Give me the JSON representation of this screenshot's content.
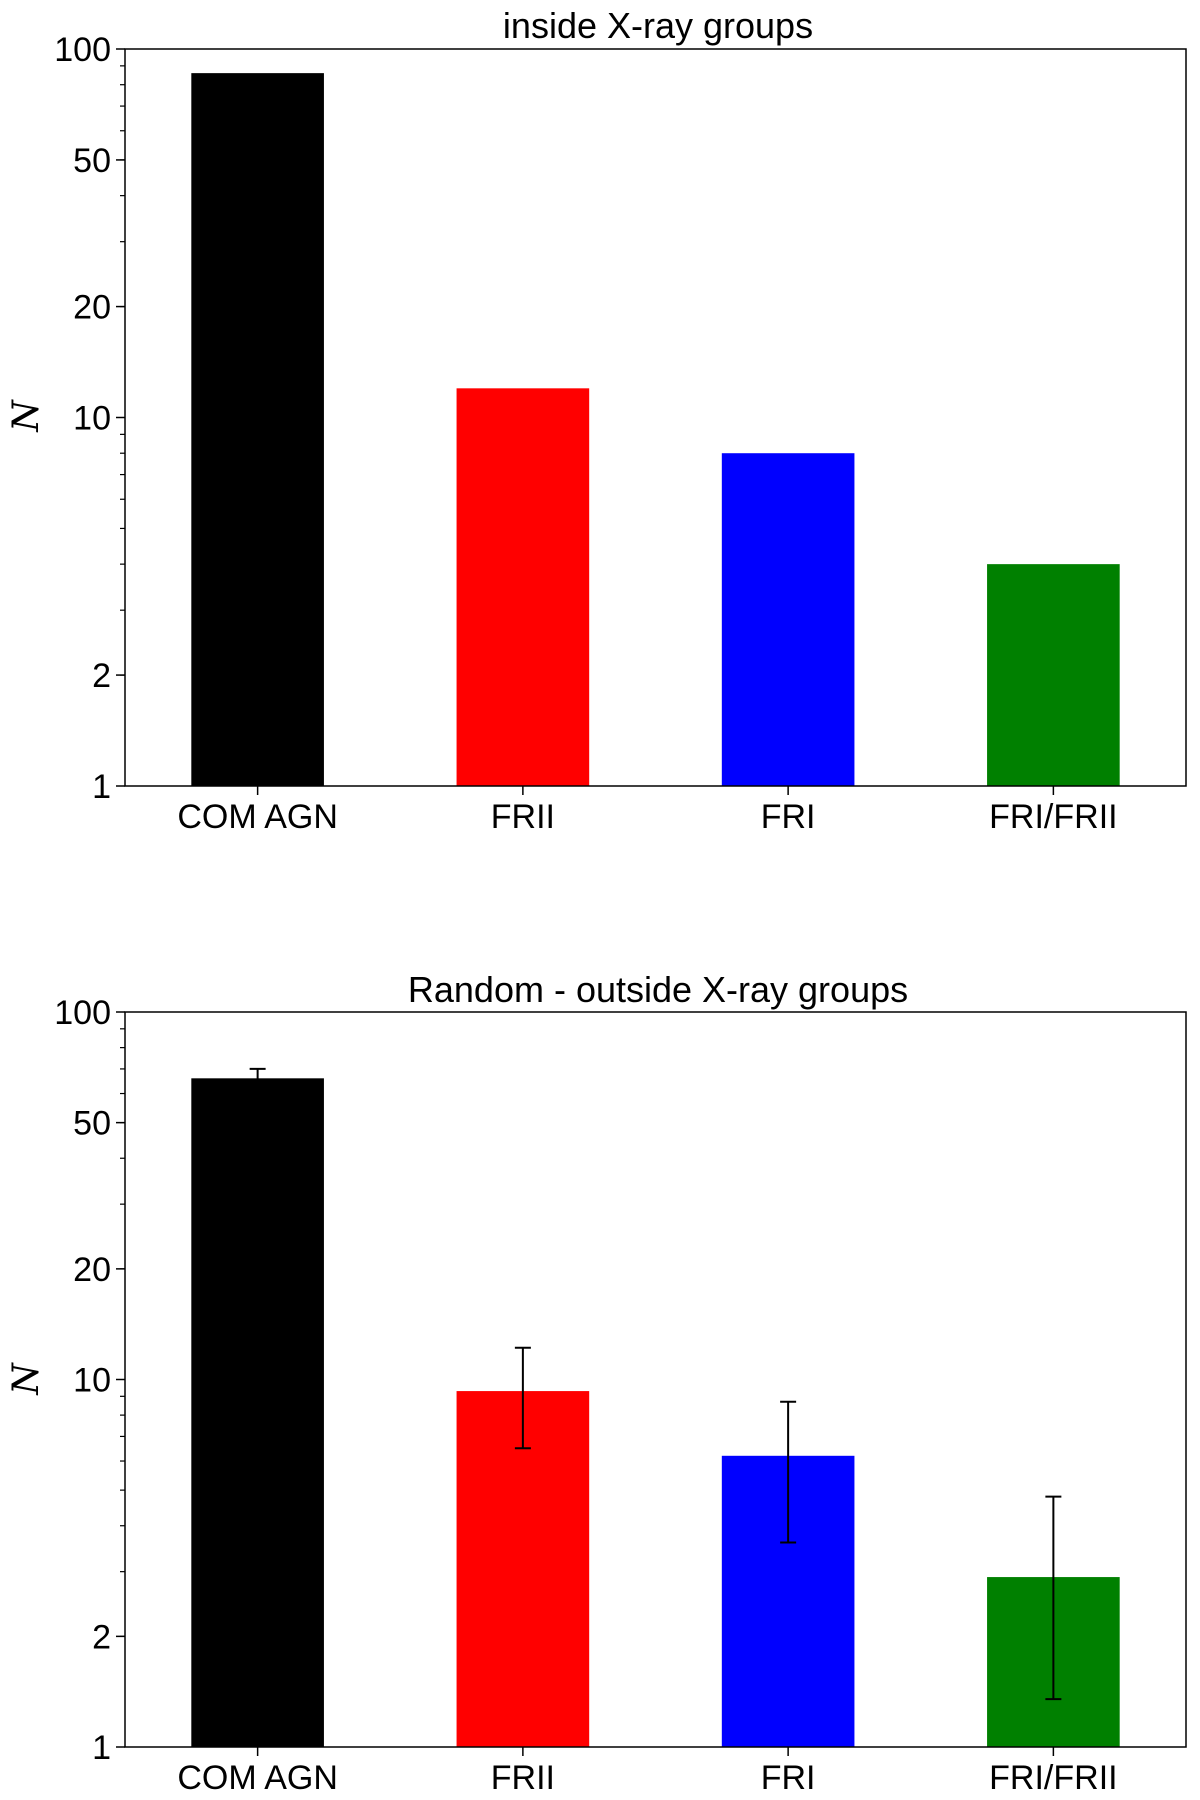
{
  "chart_data": [
    {
      "type": "bar",
      "title": "inside X-ray groups",
      "xlabel": "",
      "ylabel": "N",
      "yscale": "log",
      "ylim": [
        1,
        100
      ],
      "yticks": [
        1,
        2,
        10,
        20,
        50,
        100
      ],
      "categories": [
        "COM AGN",
        "FRII",
        "FRI",
        "FRI/FRII"
      ],
      "values": [
        86,
        12,
        8,
        4
      ],
      "errors": null,
      "colors": [
        "#000000",
        "#ff0000",
        "#0000ff",
        "#008000"
      ],
      "grid": false,
      "legend": "none"
    },
    {
      "type": "bar",
      "title": "Random - outside X-ray groups",
      "xlabel": "",
      "ylabel": "N",
      "yscale": "log",
      "ylim": [
        1,
        100
      ],
      "yticks": [
        1,
        2,
        10,
        20,
        50,
        100
      ],
      "categories": [
        "COM AGN",
        "FRII",
        "FRI",
        "FRI/FRII"
      ],
      "values": [
        66,
        9.3,
        6.2,
        2.9
      ],
      "errors": [
        {
          "low": 64,
          "high": 70
        },
        {
          "low": 6.5,
          "high": 12.2
        },
        {
          "low": 3.6,
          "high": 8.7
        },
        {
          "low": 1.35,
          "high": 4.8
        }
      ],
      "colors": [
        "#000000",
        "#ff0000",
        "#0000ff",
        "#008000"
      ],
      "grid": false,
      "legend": "none"
    }
  ]
}
